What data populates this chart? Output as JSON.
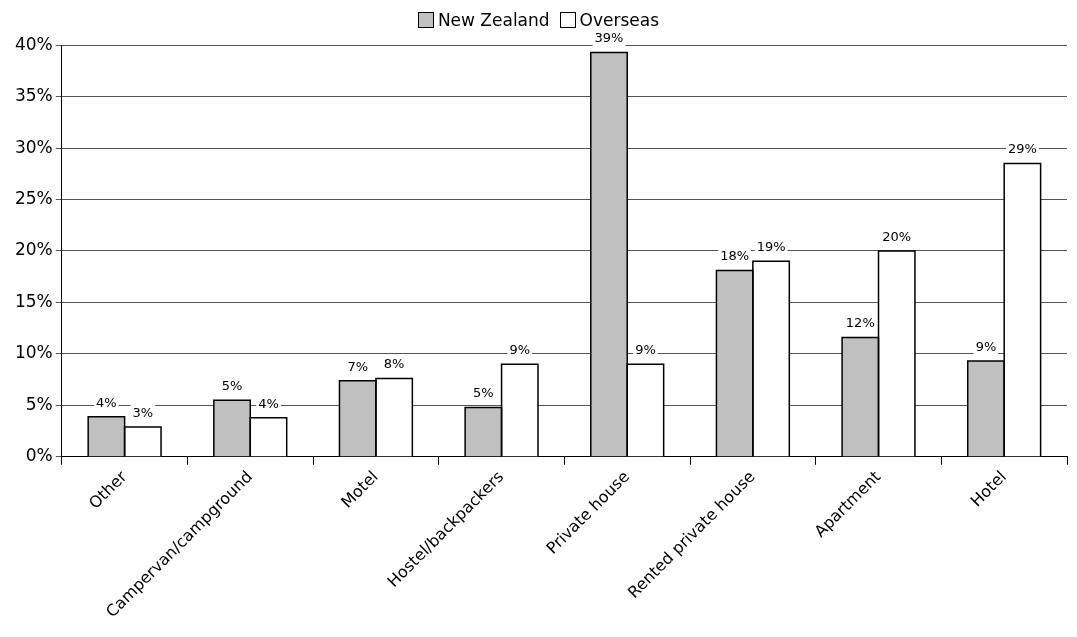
{
  "chart_data": {
    "type": "bar",
    "categories": [
      "Other",
      "Campervan/campground",
      "Motel",
      "Hostel/backpackers",
      "Private house",
      "Rented private house",
      "Apartment",
      "Hotel"
    ],
    "series": [
      {
        "name": "New Zealand",
        "color": "#c0c0c0",
        "values": [
          3.9,
          5.5,
          7.4,
          4.8,
          39.3,
          18.1,
          11.6,
          9.3
        ],
        "value_labels": [
          "4%",
          "5%",
          "7%",
          "5%",
          "39%",
          "18%",
          "12%",
          "9%"
        ]
      },
      {
        "name": "Overseas",
        "color": "#ffffff",
        "values": [
          2.9,
          3.8,
          7.6,
          9.0,
          9.0,
          19.0,
          20.0,
          28.5
        ],
        "value_labels": [
          "3%",
          "4%",
          "8%",
          "9%",
          "9%",
          "19%",
          "20%",
          "29%"
        ]
      }
    ],
    "ylim": [
      0,
      40
    ],
    "yticks": [
      {
        "value": 0,
        "label": "0%"
      },
      {
        "value": 5,
        "label": "5%"
      },
      {
        "value": 10,
        "label": "10%"
      },
      {
        "value": 15,
        "label": "15%"
      },
      {
        "value": 20,
        "label": "20%"
      },
      {
        "value": 25,
        "label": "25%"
      },
      {
        "value": 30,
        "label": "30%"
      },
      {
        "value": 35,
        "label": "35%"
      },
      {
        "value": 40,
        "label": "40%"
      }
    ],
    "grid": "y",
    "legend": "top"
  }
}
